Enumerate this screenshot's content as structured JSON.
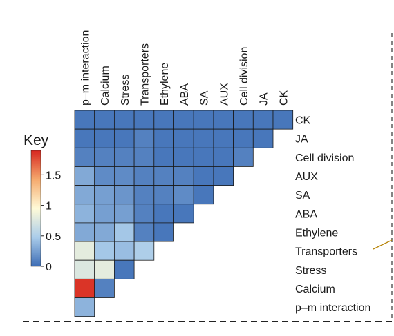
{
  "chart_data": {
    "type": "heatmap",
    "title": "",
    "xlabel": "",
    "ylabel": "",
    "x_categories": [
      "p–m interaction",
      "Calcium",
      "Stress",
      "Transporters",
      "Ethylene",
      "ABA",
      "SA",
      "AUX",
      "Cell division",
      "JA",
      "CK"
    ],
    "y_categories": [
      "CK",
      "JA",
      "Cell division",
      "AUX",
      "SA",
      "ABA",
      "Ethylene",
      "Transporters",
      "Stress",
      "Calcium",
      "p–m interaction"
    ],
    "layout": "lower-triangular",
    "values": [
      [
        0.05,
        0.05,
        0.05,
        0.05,
        0.05,
        0.05,
        0.05,
        0.05,
        0.05,
        0.05,
        0.05
      ],
      [
        0.05,
        0.05,
        0.05,
        0.1,
        0.05,
        0.05,
        0.05,
        0.05,
        0.05,
        0.05
      ],
      [
        0.1,
        0.1,
        0.1,
        0.1,
        0.05,
        0.05,
        0.05,
        0.05,
        0.1
      ],
      [
        0.3,
        0.15,
        0.15,
        0.1,
        0.1,
        0.1,
        0.05,
        0.05
      ],
      [
        0.3,
        0.25,
        0.2,
        0.1,
        0.1,
        0.15,
        0.05
      ],
      [
        0.35,
        0.25,
        0.25,
        0.1,
        0.05,
        0.05
      ],
      [
        0.3,
        0.3,
        0.45,
        0.1,
        0.05
      ],
      [
        0.8,
        0.45,
        0.4,
        0.5
      ],
      [
        0.75,
        0.8,
        0.05
      ],
      [
        1.85,
        0.1
      ],
      [
        0.35
      ]
    ],
    "colorbar": {
      "title": "Key",
      "range": [
        0,
        1.9
      ],
      "ticks": [
        0,
        0.5,
        1,
        1.5
      ],
      "tick_labels": [
        "0",
        "0.5",
        "1",
        "1.5"
      ],
      "colors": [
        "#3d6db5",
        "#aaccea",
        "#fffbd8",
        "#f5a96d",
        "#d7261f"
      ]
    }
  }
}
